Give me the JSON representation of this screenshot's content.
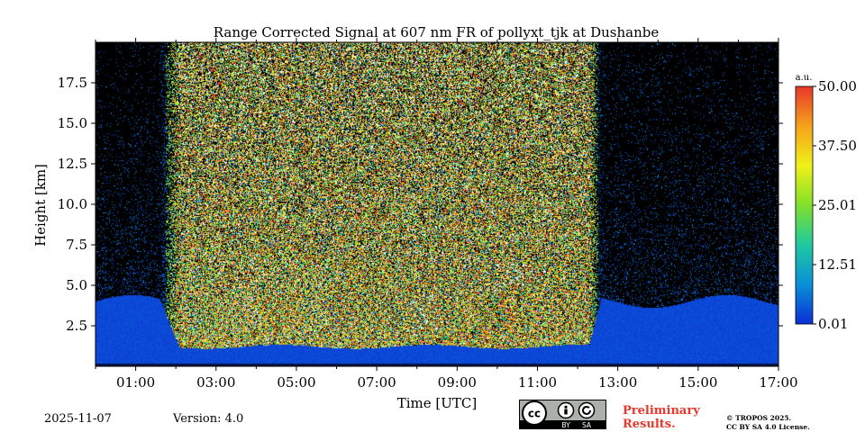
{
  "chart_data": {
    "type": "heatmap",
    "title": "Range Corrected Signal at 607 nm FR of pollyxt_tjk at Dushanbe",
    "xlabel": "Time [UTC]",
    "ylabel": "Height [km]",
    "xlim_hours": [
      0,
      17
    ],
    "ylim_km": [
      0,
      20
    ],
    "x_ticks": [
      {
        "value": 1,
        "label": "01:00"
      },
      {
        "value": 3,
        "label": "03:00"
      },
      {
        "value": 5,
        "label": "05:00"
      },
      {
        "value": 7,
        "label": "07:00"
      },
      {
        "value": 9,
        "label": "09:00"
      },
      {
        "value": 11,
        "label": "11:00"
      },
      {
        "value": 13,
        "label": "13:00"
      },
      {
        "value": 15,
        "label": "15:00"
      },
      {
        "value": 17,
        "label": "17:00"
      }
    ],
    "y_ticks": [
      {
        "value": 2.5,
        "label": "2.5"
      },
      {
        "value": 5.0,
        "label": "5.0"
      },
      {
        "value": 7.5,
        "label": "7.5"
      },
      {
        "value": 10.0,
        "label": "10.0"
      },
      {
        "value": 12.5,
        "label": "12.5"
      },
      {
        "value": 15.0,
        "label": "15.0"
      },
      {
        "value": 17.5,
        "label": "17.5"
      }
    ],
    "colorbar": {
      "unit": "a.u.",
      "range": [
        0.01,
        50.0
      ],
      "ticks": [
        {
          "value": 0.01,
          "label": "0.01"
        },
        {
          "value": 12.51,
          "label": "12.51"
        },
        {
          "value": 25.01,
          "label": "25.01"
        },
        {
          "value": 37.5,
          "label": "37.50"
        },
        {
          "value": 50.0,
          "label": "50.00"
        }
      ],
      "colors": [
        "#0b2fd6",
        "#0a8fd8",
        "#1fc9a0",
        "#7fe02a",
        "#f0f01a",
        "#f5a21a",
        "#e8372c"
      ]
    },
    "daylight_hours": [
      1.6,
      12.6
    ],
    "surface_layer_top_km": 4.0
  },
  "footer": {
    "date": "2025-11-07",
    "version": "Version: 4.0",
    "preliminary_line1": "Preliminary",
    "preliminary_line2": "Results.",
    "copyright_line1": "© TROPOS 2025.",
    "copyright_line2": "CC BY SA 4.0 License.",
    "license_badge": {
      "cc": "cc",
      "by": "BY",
      "sa": "SA"
    }
  }
}
